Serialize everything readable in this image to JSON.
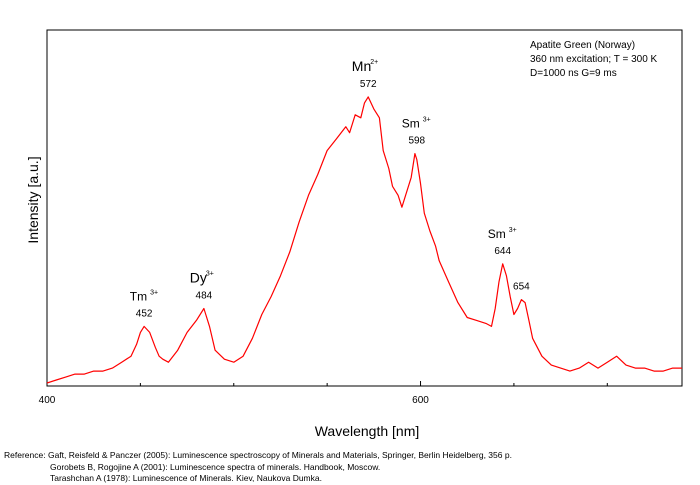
{
  "chart_data": {
    "type": "line",
    "title": "",
    "xlabel": "Wavelength [nm]",
    "ylabel": "Intensity [a.u.]",
    "xlim": [
      400,
      740
    ],
    "ylim": [
      0,
      1
    ],
    "xticks": [
      400,
      600
    ],
    "grid": false,
    "legend": "none",
    "info_lines": [
      "Apatite Green (Norway)",
      "360 nm excitation; T = 300 K",
      "D=1000 ns G=9 ms"
    ],
    "line_color": "#ff0000",
    "series": [
      {
        "x": [
          400,
          405,
          410,
          415,
          420,
          425,
          430,
          435,
          440,
          445,
          448,
          450,
          452,
          455,
          458,
          460,
          462,
          465,
          470,
          475,
          480,
          484,
          487,
          490,
          495,
          500,
          505,
          510,
          515,
          520,
          525,
          530,
          535,
          540,
          545,
          550,
          555,
          560,
          562,
          565,
          568,
          570,
          572,
          575,
          578,
          580,
          583,
          585,
          588,
          590,
          592,
          595,
          597,
          598,
          600,
          602,
          605,
          608,
          610,
          615,
          620,
          625,
          630,
          635,
          638,
          640,
          642,
          644,
          646,
          648,
          650,
          652,
          654,
          656,
          658,
          660,
          665,
          670,
          675,
          680,
          685,
          690,
          695,
          700,
          705,
          710,
          715,
          720,
          725,
          730,
          735,
          740
        ],
        "y": [
          0.01,
          0.02,
          0.03,
          0.04,
          0.04,
          0.05,
          0.05,
          0.06,
          0.08,
          0.1,
          0.14,
          0.18,
          0.2,
          0.18,
          0.13,
          0.1,
          0.09,
          0.08,
          0.12,
          0.18,
          0.22,
          0.26,
          0.2,
          0.12,
          0.09,
          0.08,
          0.1,
          0.16,
          0.24,
          0.3,
          0.37,
          0.45,
          0.55,
          0.64,
          0.71,
          0.79,
          0.83,
          0.87,
          0.85,
          0.91,
          0.9,
          0.95,
          0.97,
          0.93,
          0.9,
          0.79,
          0.73,
          0.67,
          0.64,
          0.6,
          0.64,
          0.7,
          0.78,
          0.76,
          0.68,
          0.58,
          0.52,
          0.47,
          0.42,
          0.35,
          0.28,
          0.23,
          0.22,
          0.21,
          0.2,
          0.26,
          0.35,
          0.41,
          0.37,
          0.3,
          0.24,
          0.26,
          0.29,
          0.28,
          0.22,
          0.16,
          0.1,
          0.07,
          0.06,
          0.05,
          0.06,
          0.08,
          0.06,
          0.08,
          0.1,
          0.07,
          0.06,
          0.06,
          0.05,
          0.05,
          0.06,
          0.06
        ]
      }
    ],
    "annotations": [
      {
        "ion": "Tm",
        "charge": "3+",
        "wavelength": "452",
        "x": 452,
        "y": 0.2
      },
      {
        "ion": "Dy",
        "charge": "3+",
        "wavelength": "484",
        "x": 484,
        "y": 0.26
      },
      {
        "ion": "Mn",
        "charge": "2+",
        "wavelength": "572",
        "x": 572,
        "y": 0.97
      },
      {
        "ion": "Sm",
        "charge": "3+",
        "wavelength": "598",
        "x": 598,
        "y": 0.78
      },
      {
        "ion": "Sm",
        "charge": "3+",
        "wavelength": "644",
        "x": 644,
        "y": 0.41
      },
      {
        "ion": "",
        "charge": "",
        "wavelength": "654",
        "x": 654,
        "y": 0.29
      }
    ]
  },
  "references": {
    "prefix": "Reference:",
    "lines": [
      "Gaft, Reisfeld & Panczer (2005): Luminescence spectroscopy of Minerals and Materials, Springer, Berlin Heidelberg, 356 p.",
      "Gorobets B, Rogojine A (2001): Luminescence spectra of minerals. Handbook, Moscow.",
      "Tarashchan A (1978): Luminescence of Minerals. Kiev, Naukova Dumka."
    ]
  }
}
